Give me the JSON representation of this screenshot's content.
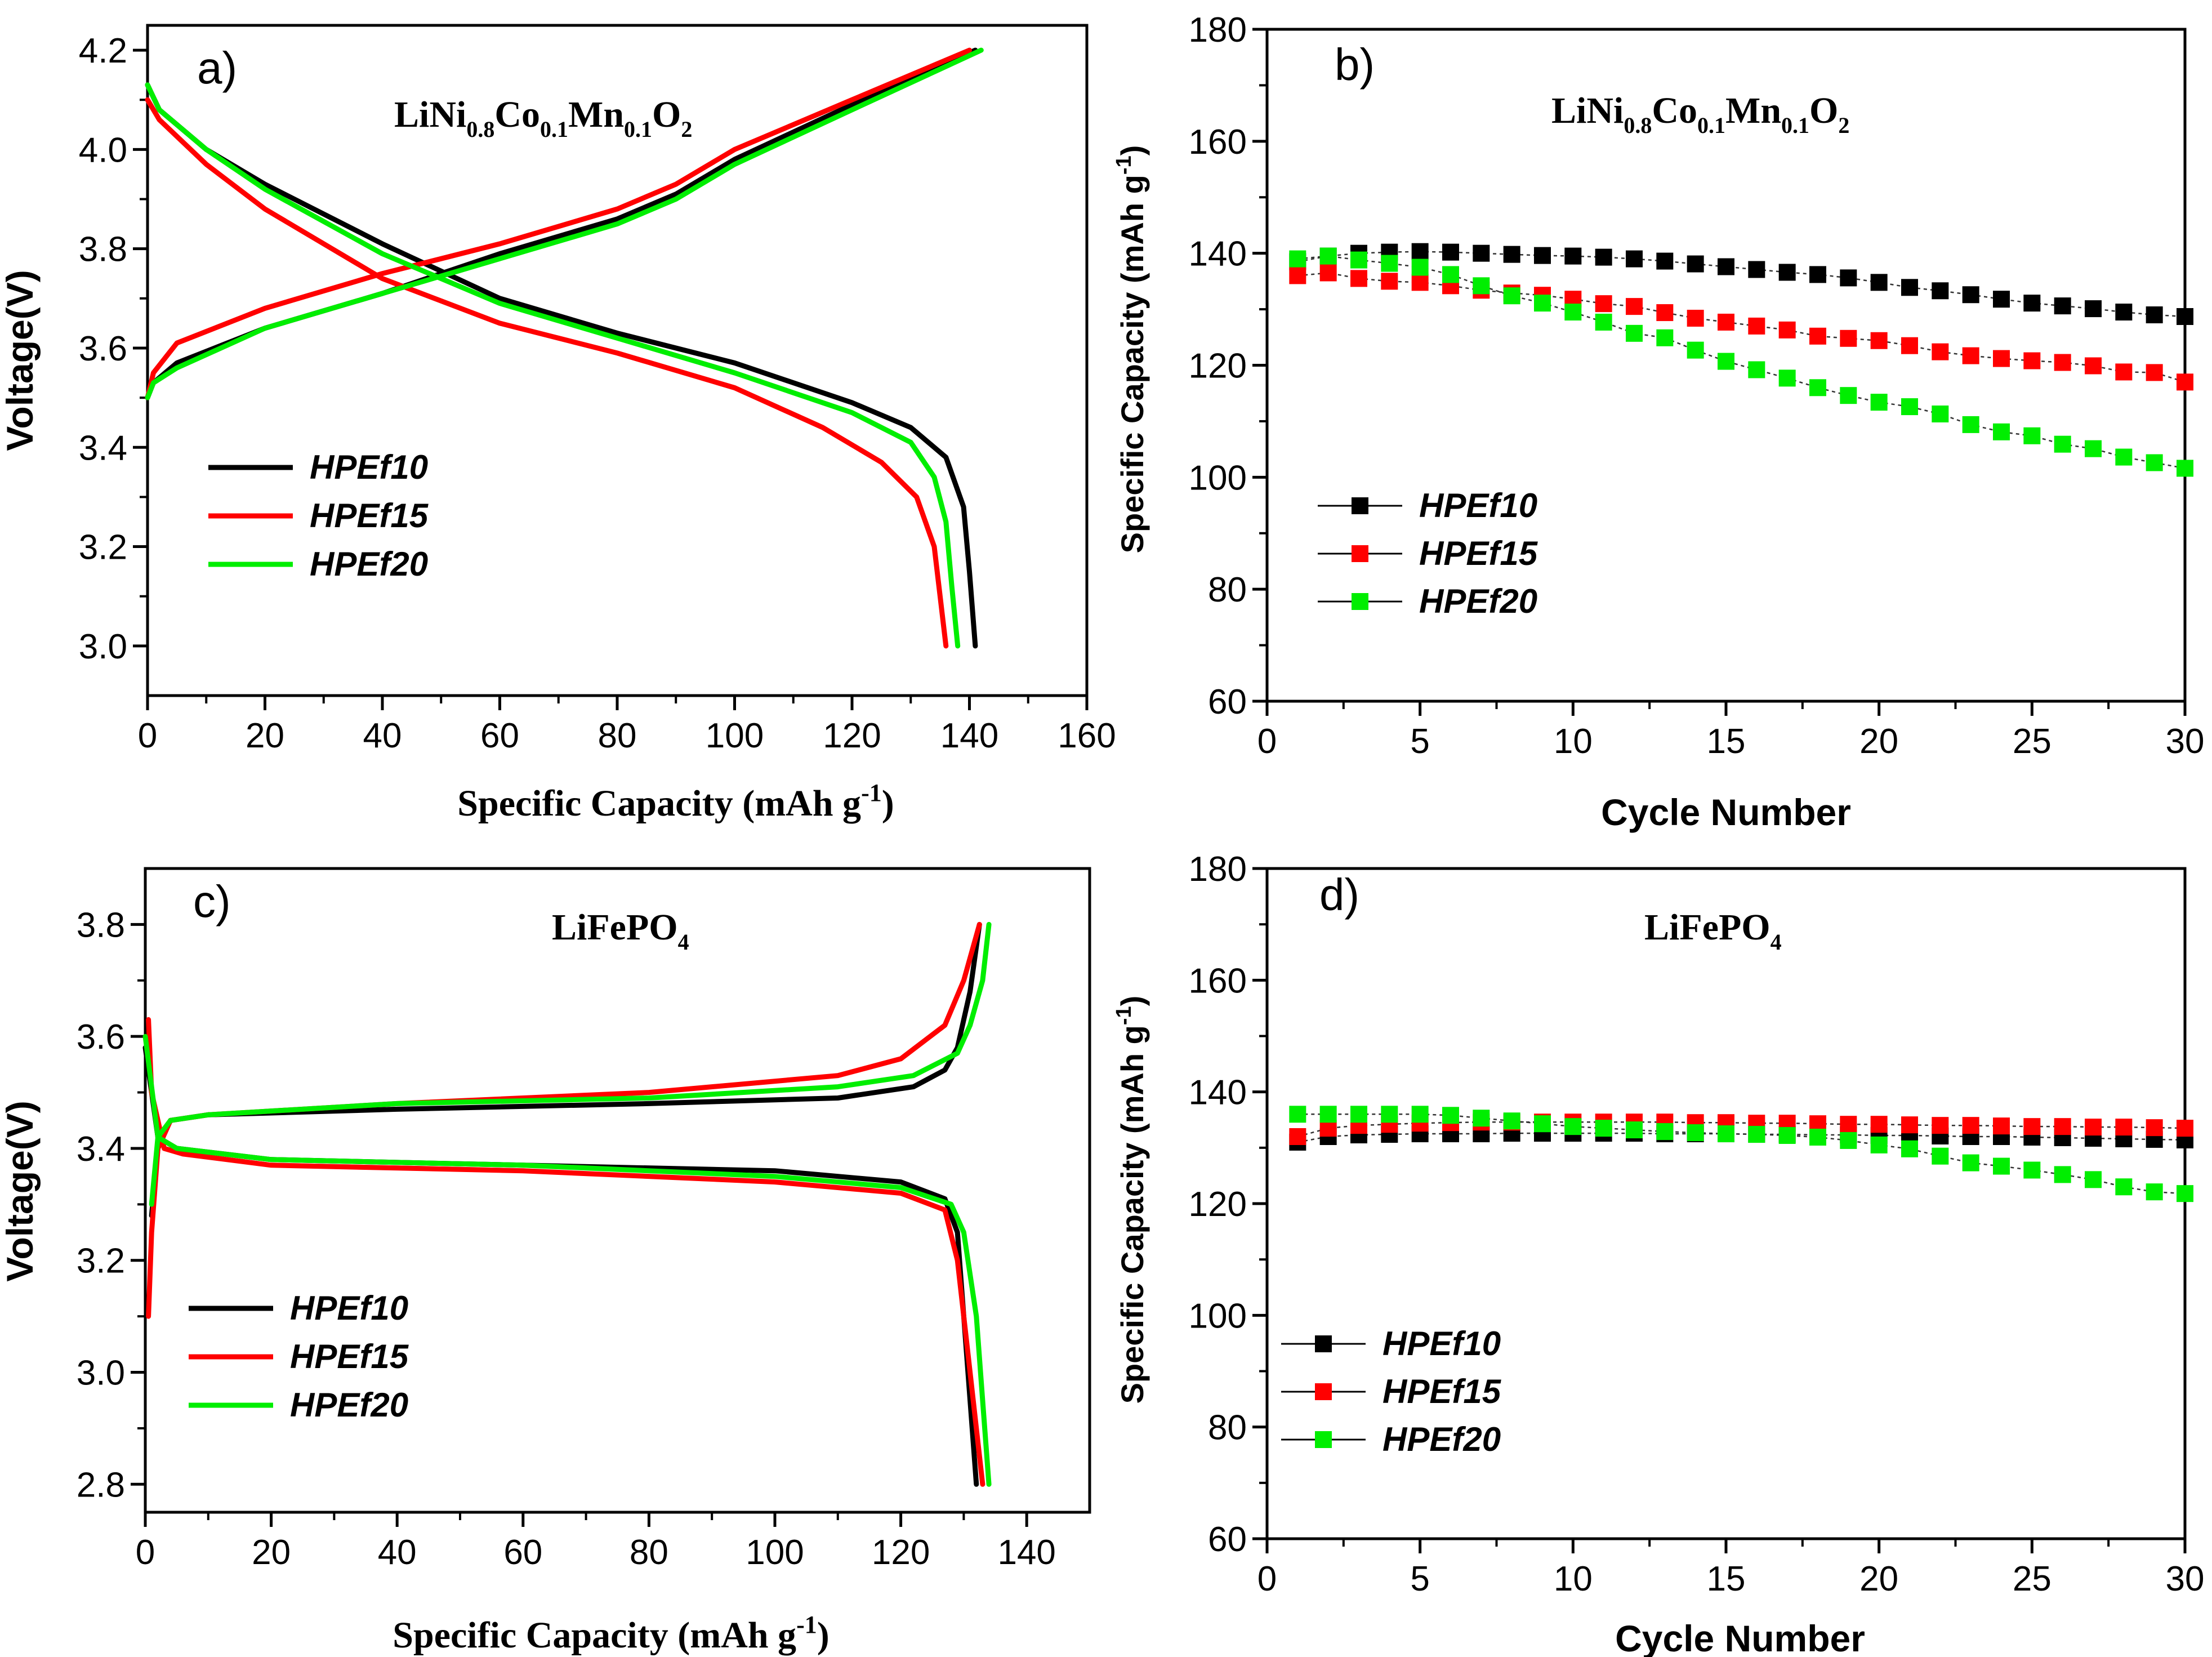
{
  "chart_data": [
    {
      "id": "a",
      "type": "line",
      "panel_label": "a)",
      "title_parts": [
        "LiNi",
        "0.8",
        "Co",
        "0.1",
        "Mn",
        "0.1",
        "O",
        "2"
      ],
      "xlabel": "Specific Capacity (mAh g",
      "xlabel_sup": "-1",
      "xlabel_end": ")",
      "ylabel": "Voltage(V)",
      "xlim": [
        0,
        160
      ],
      "ylim": [
        2.9,
        4.25
      ],
      "xticks": [
        0,
        20,
        40,
        60,
        80,
        100,
        120,
        140,
        160
      ],
      "xtick_labels": [
        "0",
        "20",
        "40",
        "60",
        "80",
        "100",
        "120",
        "140",
        "160"
      ],
      "yticks": [
        3.0,
        3.2,
        3.4,
        3.6,
        3.8,
        4.0,
        4.2
      ],
      "ytick_labels": [
        "3.0",
        "3.2",
        "3.4",
        "3.6",
        "3.8",
        "4.0",
        "4.2"
      ],
      "grid": false,
      "legend_position": "lower-left",
      "series": [
        {
          "name": "HPEf10",
          "color": "#000000",
          "charge": [
            [
              0,
              3.5
            ],
            [
              1,
              3.53
            ],
            [
              5,
              3.57
            ],
            [
              20,
              3.64
            ],
            [
              40,
              3.71
            ],
            [
              60,
              3.79
            ],
            [
              80,
              3.86
            ],
            [
              90,
              3.91
            ],
            [
              100,
              3.98
            ],
            [
              120,
              4.09
            ],
            [
              141,
              4.2
            ]
          ],
          "discharge": [
            [
              0,
              4.13
            ],
            [
              2,
              4.08
            ],
            [
              10,
              4.0
            ],
            [
              20,
              3.93
            ],
            [
              40,
              3.81
            ],
            [
              60,
              3.7
            ],
            [
              80,
              3.63
            ],
            [
              100,
              3.57
            ],
            [
              120,
              3.49
            ],
            [
              130,
              3.44
            ],
            [
              136,
              3.38
            ],
            [
              139,
              3.28
            ],
            [
              140,
              3.15
            ],
            [
              141,
              3.0
            ]
          ]
        },
        {
          "name": "HPEf15",
          "color": "#ff0000",
          "charge": [
            [
              0,
              3.5
            ],
            [
              1,
              3.55
            ],
            [
              5,
              3.61
            ],
            [
              20,
              3.68
            ],
            [
              40,
              3.75
            ],
            [
              60,
              3.81
            ],
            [
              80,
              3.88
            ],
            [
              90,
              3.93
            ],
            [
              100,
              4.0
            ],
            [
              120,
              4.1
            ],
            [
              140,
              4.2
            ]
          ],
          "discharge": [
            [
              0,
              4.1
            ],
            [
              2,
              4.06
            ],
            [
              10,
              3.97
            ],
            [
              20,
              3.88
            ],
            [
              40,
              3.74
            ],
            [
              60,
              3.65
            ],
            [
              80,
              3.59
            ],
            [
              100,
              3.52
            ],
            [
              115,
              3.44
            ],
            [
              125,
              3.37
            ],
            [
              131,
              3.3
            ],
            [
              134,
              3.2
            ],
            [
              135,
              3.1
            ],
            [
              136,
              3.0
            ]
          ]
        },
        {
          "name": "HPEf20",
          "color": "#00ee00",
          "charge": [
            [
              0,
              3.5
            ],
            [
              1,
              3.53
            ],
            [
              5,
              3.56
            ],
            [
              20,
              3.64
            ],
            [
              40,
              3.71
            ],
            [
              60,
              3.78
            ],
            [
              80,
              3.85
            ],
            [
              90,
              3.9
            ],
            [
              100,
              3.97
            ],
            [
              120,
              4.08
            ],
            [
              142,
              4.2
            ]
          ],
          "discharge": [
            [
              0,
              4.13
            ],
            [
              2,
              4.08
            ],
            [
              10,
              4.0
            ],
            [
              20,
              3.92
            ],
            [
              40,
              3.79
            ],
            [
              60,
              3.69
            ],
            [
              80,
              3.62
            ],
            [
              100,
              3.55
            ],
            [
              120,
              3.47
            ],
            [
              130,
              3.41
            ],
            [
              134,
              3.34
            ],
            [
              136,
              3.25
            ],
            [
              137,
              3.12
            ],
            [
              138,
              3.0
            ]
          ]
        }
      ]
    },
    {
      "id": "b",
      "type": "scatter",
      "panel_label": "b)",
      "title_parts": [
        "LiNi",
        "0.8",
        "Co",
        "0.1",
        "Mn",
        "0.1",
        "O",
        "2"
      ],
      "xlabel": "Cycle Number",
      "ylabel": "Specific Capacity (mAh g",
      "ylabel_sup": "-1",
      "ylabel_end": ")",
      "xlim": [
        0,
        30
      ],
      "ylim": [
        60,
        180
      ],
      "xticks": [
        0,
        5,
        10,
        15,
        20,
        25,
        30
      ],
      "xtick_labels": [
        "0",
        "5",
        "10",
        "15",
        "20",
        "25",
        "30"
      ],
      "yticks": [
        60,
        80,
        100,
        120,
        140,
        160,
        180
      ],
      "ytick_labels": [
        "60",
        "80",
        "100",
        "120",
        "140",
        "160",
        "180"
      ],
      "grid": false,
      "legend_position": "lower-left",
      "x": [
        1,
        2,
        3,
        4,
        5,
        6,
        7,
        8,
        9,
        10,
        11,
        12,
        13,
        14,
        15,
        16,
        17,
        18,
        19,
        20,
        21,
        22,
        23,
        24,
        25,
        26,
        27,
        28,
        29,
        30
      ],
      "series": [
        {
          "name": "HPEf10",
          "color": "#000000",
          "values": [
            138.5,
            139.5,
            140.0,
            140.2,
            140.3,
            140.2,
            140.0,
            139.8,
            139.6,
            139.5,
            139.3,
            139.0,
            138.6,
            138.1,
            137.6,
            137.1,
            136.6,
            136.2,
            135.6,
            134.8,
            133.9,
            133.3,
            132.6,
            131.8,
            131.1,
            130.6,
            130.1,
            129.5,
            129.0,
            128.7
          ]
        },
        {
          "name": "HPEf15",
          "color": "#ff0000",
          "values": [
            136.0,
            136.5,
            135.5,
            135.0,
            134.8,
            134.2,
            133.4,
            132.9,
            132.5,
            131.8,
            131.0,
            130.5,
            129.4,
            128.4,
            127.7,
            127.0,
            126.3,
            125.2,
            124.8,
            124.4,
            123.5,
            122.4,
            121.7,
            121.2,
            120.8,
            120.5,
            119.9,
            118.8,
            118.7,
            117.0
          ]
        },
        {
          "name": "HPEf20",
          "color": "#00ee00",
          "values": [
            139.0,
            139.5,
            138.8,
            138.2,
            137.5,
            136.2,
            134.2,
            132.4,
            131.1,
            129.5,
            127.7,
            125.7,
            124.9,
            122.7,
            120.7,
            119.2,
            117.7,
            116.0,
            114.6,
            113.4,
            112.6,
            111.3,
            109.4,
            108.1,
            107.4,
            105.9,
            105.1,
            103.6,
            102.6,
            101.6
          ]
        }
      ]
    },
    {
      "id": "c",
      "type": "line",
      "panel_label": "c)",
      "title_parts": [
        "LiFePO",
        "4"
      ],
      "xlabel": "Specific Capacity (mAh g",
      "xlabel_sup": "-1",
      "xlabel_end": ")",
      "ylabel": "Voltage(V)",
      "xlim": [
        0,
        150
      ],
      "ylim": [
        2.75,
        3.9
      ],
      "xticks": [
        0,
        20,
        40,
        60,
        80,
        100,
        120,
        140
      ],
      "xtick_labels": [
        "0",
        "20",
        "40",
        "60",
        "80",
        "100",
        "120",
        "140"
      ],
      "yticks": [
        2.8,
        3.0,
        3.2,
        3.4,
        3.6,
        3.8
      ],
      "ytick_labels": [
        "2.8",
        "3.0",
        "3.2",
        "3.4",
        "3.6",
        "3.8"
      ],
      "grid": false,
      "legend_position": "lower-left",
      "series": [
        {
          "name": "HPEf10",
          "color": "#000000",
          "charge": [
            [
              1,
              3.28
            ],
            [
              2,
              3.4
            ],
            [
              4,
              3.45
            ],
            [
              10,
              3.46
            ],
            [
              40,
              3.47
            ],
            [
              80,
              3.48
            ],
            [
              110,
              3.49
            ],
            [
              122,
              3.51
            ],
            [
              127,
              3.54
            ],
            [
              129,
              3.58
            ],
            [
              131,
              3.68
            ],
            [
              132.5,
              3.8
            ]
          ],
          "discharge": [
            [
              0,
              3.58
            ],
            [
              2,
              3.42
            ],
            [
              5,
              3.4
            ],
            [
              20,
              3.38
            ],
            [
              60,
              3.37
            ],
            [
              100,
              3.36
            ],
            [
              120,
              3.34
            ],
            [
              127,
              3.31
            ],
            [
              129,
              3.25
            ],
            [
              130,
              3.1
            ],
            [
              131,
              2.95
            ],
            [
              132,
              2.8
            ]
          ]
        },
        {
          "name": "HPEf15",
          "color": "#ff0000",
          "charge": [
            [
              0.5,
              3.1
            ],
            [
              1,
              3.25
            ],
            [
              2,
              3.4
            ],
            [
              4,
              3.45
            ],
            [
              10,
              3.46
            ],
            [
              40,
              3.48
            ],
            [
              80,
              3.5
            ],
            [
              110,
              3.53
            ],
            [
              120,
              3.56
            ],
            [
              127,
              3.62
            ],
            [
              130,
              3.7
            ],
            [
              132.5,
              3.8
            ]
          ],
          "discharge": [
            [
              0.5,
              3.63
            ],
            [
              1,
              3.5
            ],
            [
              3,
              3.4
            ],
            [
              6,
              3.39
            ],
            [
              20,
              3.37
            ],
            [
              60,
              3.36
            ],
            [
              100,
              3.34
            ],
            [
              120,
              3.32
            ],
            [
              127,
              3.29
            ],
            [
              129,
              3.2
            ],
            [
              131,
              3.0
            ],
            [
              133,
              2.8
            ]
          ]
        },
        {
          "name": "HPEf20",
          "color": "#00ee00",
          "charge": [
            [
              1,
              3.3
            ],
            [
              2,
              3.42
            ],
            [
              4,
              3.45
            ],
            [
              10,
              3.46
            ],
            [
              40,
              3.48
            ],
            [
              80,
              3.49
            ],
            [
              110,
              3.51
            ],
            [
              122,
              3.53
            ],
            [
              129,
              3.57
            ],
            [
              131,
              3.62
            ],
            [
              133,
              3.7
            ],
            [
              134,
              3.8
            ]
          ],
          "discharge": [
            [
              0,
              3.6
            ],
            [
              2,
              3.42
            ],
            [
              5,
              3.4
            ],
            [
              20,
              3.38
            ],
            [
              60,
              3.37
            ],
            [
              100,
              3.35
            ],
            [
              120,
              3.33
            ],
            [
              128,
              3.3
            ],
            [
              130,
              3.25
            ],
            [
              132,
              3.1
            ],
            [
              133,
              2.95
            ],
            [
              134,
              2.8
            ]
          ]
        }
      ]
    },
    {
      "id": "d",
      "type": "scatter",
      "panel_label": "d)",
      "title_parts": [
        "LiFePO",
        "4"
      ],
      "xlabel": "Cycle Number",
      "ylabel": "Specific Capacity (mAh g",
      "ylabel_sup": "-1",
      "ylabel_end": ")",
      "xlim": [
        0,
        30
      ],
      "ylim": [
        60,
        180
      ],
      "xticks": [
        0,
        5,
        10,
        15,
        20,
        25,
        30
      ],
      "xtick_labels": [
        "0",
        "5",
        "10",
        "15",
        "20",
        "25",
        "30"
      ],
      "yticks": [
        60,
        80,
        100,
        120,
        140,
        160,
        180
      ],
      "ytick_labels": [
        "60",
        "80",
        "100",
        "120",
        "140",
        "160",
        "180"
      ],
      "grid": false,
      "legend_position": "lower-left",
      "x": [
        1,
        2,
        3,
        4,
        5,
        6,
        7,
        8,
        9,
        10,
        11,
        12,
        13,
        14,
        15,
        16,
        17,
        18,
        19,
        20,
        21,
        22,
        23,
        24,
        25,
        26,
        27,
        28,
        29,
        30
      ],
      "series": [
        {
          "name": "HPEf10",
          "color": "#000000",
          "values": [
            131.0,
            132.0,
            132.3,
            132.4,
            132.5,
            132.5,
            132.5,
            132.6,
            132.6,
            132.6,
            132.6,
            132.6,
            132.5,
            132.5,
            132.5,
            132.4,
            132.4,
            132.3,
            132.3,
            132.2,
            132.2,
            132.1,
            132.0,
            132.0,
            131.9,
            131.8,
            131.7,
            131.6,
            131.5,
            131.4
          ]
        },
        {
          "name": "HPEf15",
          "color": "#ff0000",
          "values": [
            132.0,
            133.5,
            134.0,
            134.2,
            134.4,
            134.5,
            134.6,
            134.6,
            134.6,
            134.6,
            134.6,
            134.6,
            134.6,
            134.5,
            134.5,
            134.4,
            134.4,
            134.3,
            134.2,
            134.2,
            134.1,
            134.0,
            134.0,
            133.9,
            133.8,
            133.8,
            133.7,
            133.7,
            133.6,
            133.5
          ]
        },
        {
          "name": "HPEf20",
          "color": "#00ee00",
          "values": [
            136.0,
            136.0,
            136.0,
            136.0,
            136.0,
            135.8,
            135.3,
            134.8,
            134.3,
            133.8,
            133.5,
            133.2,
            132.9,
            132.7,
            132.5,
            132.4,
            132.2,
            131.9,
            131.3,
            130.5,
            129.8,
            128.5,
            127.3,
            126.7,
            126.0,
            125.2,
            124.3,
            123.0,
            122.1,
            121.8
          ]
        }
      ]
    }
  ]
}
